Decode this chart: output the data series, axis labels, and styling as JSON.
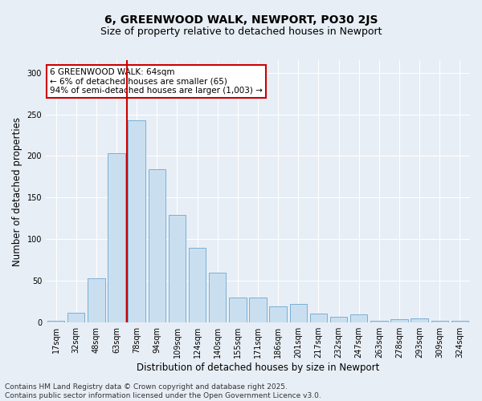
{
  "title": "6, GREENWOOD WALK, NEWPORT, PO30 2JS",
  "subtitle": "Size of property relative to detached houses in Newport",
  "xlabel": "Distribution of detached houses by size in Newport",
  "ylabel": "Number of detached properties",
  "categories": [
    "17sqm",
    "32sqm",
    "48sqm",
    "63sqm",
    "78sqm",
    "94sqm",
    "109sqm",
    "124sqm",
    "140sqm",
    "155sqm",
    "171sqm",
    "186sqm",
    "201sqm",
    "217sqm",
    "232sqm",
    "247sqm",
    "263sqm",
    "278sqm",
    "293sqm",
    "309sqm",
    "324sqm"
  ],
  "values": [
    2,
    12,
    53,
    203,
    243,
    184,
    129,
    90,
    60,
    30,
    30,
    19,
    22,
    11,
    7,
    10,
    2,
    4,
    5,
    2,
    2
  ],
  "bar_color": "#c9dff0",
  "bar_edge_color": "#7bafd4",
  "vline_color": "#cc0000",
  "vline_position": 3.5,
  "annotation_text": "6 GREENWOOD WALK: 64sqm\n← 6% of detached houses are smaller (65)\n94% of semi-detached houses are larger (1,003) →",
  "annotation_box_color": "#ffffff",
  "annotation_box_edge": "#cc0000",
  "ylim": [
    0,
    315
  ],
  "yticks": [
    0,
    50,
    100,
    150,
    200,
    250,
    300
  ],
  "background_color": "#e8eef5",
  "plot_bg_color": "#e8eef5",
  "footer_line1": "Contains HM Land Registry data © Crown copyright and database right 2025.",
  "footer_line2": "Contains public sector information licensed under the Open Government Licence v3.0.",
  "title_fontsize": 10,
  "subtitle_fontsize": 9,
  "axis_label_fontsize": 8.5,
  "tick_fontsize": 7,
  "annotation_fontsize": 7.5,
  "footer_fontsize": 6.5
}
